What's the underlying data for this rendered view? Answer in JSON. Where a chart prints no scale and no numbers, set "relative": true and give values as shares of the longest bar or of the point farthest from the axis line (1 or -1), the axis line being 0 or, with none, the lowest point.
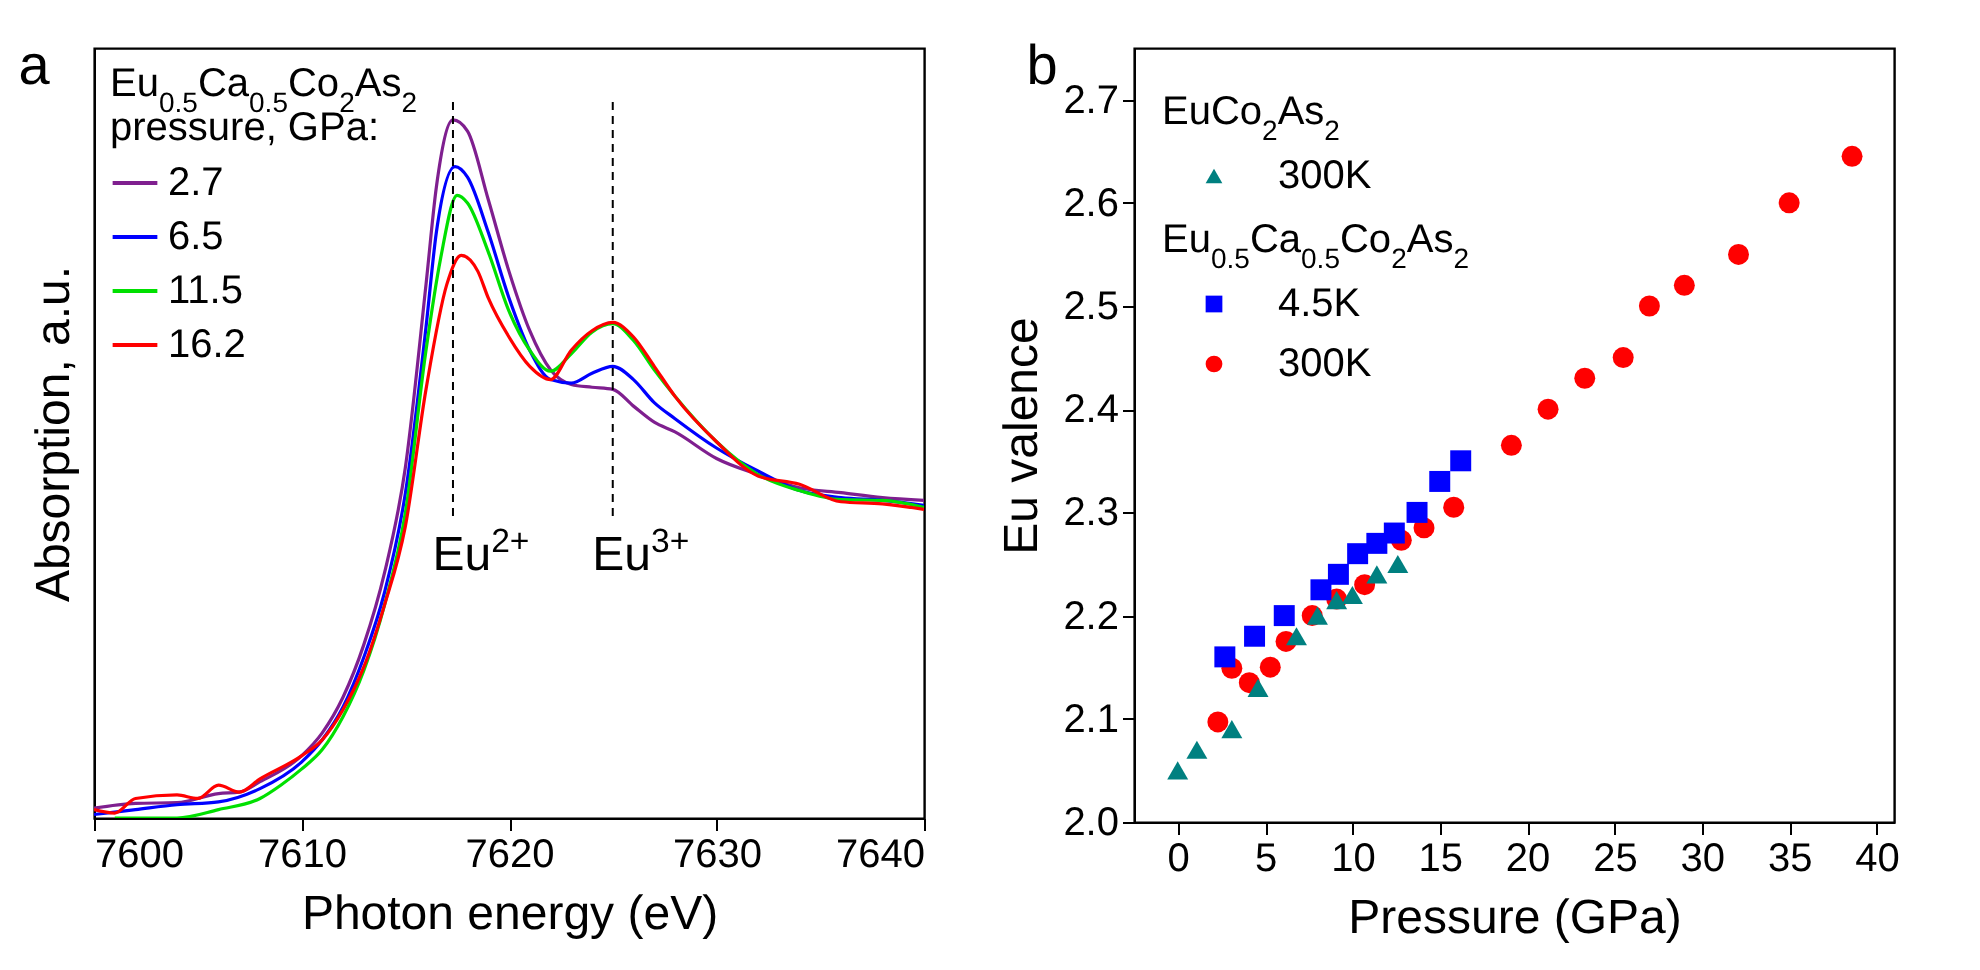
{
  "chart_data": [
    {
      "type": "line",
      "title": "a",
      "xlabel": "Photon energy (eV)",
      "ylabel": "Absorption, a.u.",
      "legend_title": "Eu$_{0.5}$Ca$_{0.5}$Co$_{2}$As$_{2}$\npressure, GPa:",
      "legend": "top left",
      "relative": true,
      "xlim": [
        7600,
        7640
      ],
      "xticks": [
        7600,
        7610,
        7620,
        7630,
        7640
      ],
      "ref_lines": [
        {
          "axis": "x",
          "value": 7617.3,
          "label": "Eu$^{2+}$",
          "line_style": "dashed"
        },
        {
          "axis": "x",
          "value": 7625,
          "label": "Eu$^{3+}$",
          "line_style": "dashed"
        }
      ],
      "series": [
        {
          "name": "2.7",
          "color": "#7f1f8f",
          "x": [
            7600,
            7602,
            7604,
            7606,
            7607,
            7608,
            7610,
            7611,
            7612,
            7613,
            7614,
            7615,
            7616,
            7616.5,
            7617.3,
            7618,
            7619,
            7620,
            7621,
            7622,
            7623,
            7624,
            7625,
            7626,
            7627,
            7628,
            7630,
            7632,
            7634,
            7636,
            7638,
            7640
          ],
          "values": [
            0.014,
            0.021,
            0.022,
            0.035,
            0.037,
            0.052,
            0.089,
            0.122,
            0.173,
            0.248,
            0.351,
            0.501,
            0.764,
            0.904,
            1,
            0.984,
            0.886,
            0.783,
            0.698,
            0.642,
            0.621,
            0.617,
            0.614,
            0.59,
            0.567,
            0.553,
            0.515,
            0.492,
            0.473,
            0.466,
            0.459,
            0.455
          ]
        },
        {
          "name": "6.5",
          "color": "#0000ff",
          "x": [
            7600,
            7602,
            7604,
            7606,
            7608,
            7610,
            7611,
            7612,
            7613,
            7614,
            7615,
            7616,
            7616.5,
            7617.4,
            7618,
            7619,
            7620,
            7621,
            7622,
            7623,
            7624,
            7625,
            7626,
            7627,
            7628,
            7630,
            7632,
            7634,
            7636,
            7638,
            7640
          ],
          "values": [
            0.005,
            0.012,
            0.019,
            0.023,
            0.042,
            0.08,
            0.112,
            0.159,
            0.23,
            0.323,
            0.464,
            0.703,
            0.839,
            0.933,
            0.918,
            0.839,
            0.745,
            0.67,
            0.628,
            0.623,
            0.637,
            0.647,
            0.628,
            0.595,
            0.572,
            0.53,
            0.497,
            0.469,
            0.459,
            0.455,
            0.448
          ]
        },
        {
          "name": "11.5",
          "color": "#00e000",
          "x": [
            7601,
            7602,
            7604,
            7606,
            7608,
            7609,
            7610,
            7611,
            7612,
            7613,
            7614,
            7615,
            7616,
            7616.7,
            7617.5,
            7618,
            7619,
            7620,
            7621,
            7622,
            7623,
            7624,
            7625,
            7626,
            7627,
            7628,
            7630,
            7632,
            7634,
            7636,
            7638,
            7640
          ],
          "values": [
            0,
            0,
            0,
            0.012,
            0.028,
            0.047,
            0.07,
            0.098,
            0.145,
            0.211,
            0.305,
            0.436,
            0.67,
            0.801,
            0.892,
            0.881,
            0.811,
            0.726,
            0.67,
            0.64,
            0.665,
            0.696,
            0.708,
            0.684,
            0.642,
            0.604,
            0.539,
            0.492,
            0.469,
            0.456,
            0.455,
            0.445
          ]
        },
        {
          "name": "16.2",
          "color": "#ff0000",
          "x": [
            7600,
            7601,
            7602,
            7604,
            7605,
            7606,
            7607,
            7608,
            7610,
            7611,
            7612,
            7613,
            7614,
            7615,
            7616,
            7617,
            7617.7,
            7618.5,
            7619,
            7620,
            7621,
            7622,
            7623,
            7624,
            7625,
            7626,
            7627,
            7628,
            7630,
            7632,
            7634,
            7636,
            7638,
            7640
          ],
          "values": [
            0.012,
            0.007,
            0.028,
            0.033,
            0.028,
            0.047,
            0.037,
            0.056,
            0.089,
            0.112,
            0.155,
            0.216,
            0.305,
            0.417,
            0.614,
            0.764,
            0.806,
            0.783,
            0.745,
            0.689,
            0.647,
            0.628,
            0.67,
            0.698,
            0.71,
            0.689,
            0.647,
            0.604,
            0.539,
            0.49,
            0.478,
            0.453,
            0.45,
            0.442
          ]
        }
      ]
    },
    {
      "type": "scatter",
      "title": "b",
      "xlabel": "Pressure (GPa)",
      "ylabel": "Eu valence",
      "legend": "top left",
      "xlim": [
        -2.5,
        41
      ],
      "xticks": [
        0,
        5,
        10,
        15,
        20,
        25,
        30,
        35,
        40
      ],
      "ylim": [
        2.0,
        2.75
      ],
      "yticks": [
        {
          "value": 2.0,
          "label": "2.0"
        },
        2.1,
        2.2,
        2.3,
        2.4,
        2.5,
        2.6,
        2.7
      ],
      "annotations": [
        "EuCo$_{2}$As$_{2}$",
        "Eu$_{0.5}$Ca$_{0.5}$Co$_{2}$As$_{2}$"
      ],
      "series": [
        {
          "name": "300K",
          "color": "#008080",
          "marker": "triangle",
          "x": [
            0,
            1.1,
            3.1,
            4.6,
            6.8,
            8.0,
            9.1,
            10.0,
            11.4,
            12.6
          ],
          "values": [
            2.05,
            2.07,
            2.09,
            2.13,
            2.18,
            2.2,
            2.215,
            2.22,
            2.24,
            2.25
          ]
        },
        {
          "name": "4.5K",
          "color": "#0000ff",
          "marker": "square",
          "x": [
            2.7,
            4.4,
            6.1,
            8.2,
            9.2,
            10.3,
            11.4,
            12.4,
            13.7,
            15.0,
            16.2
          ],
          "values": [
            2.16,
            2.18,
            2.2,
            2.225,
            2.24,
            2.26,
            2.27,
            2.28,
            2.3,
            2.33,
            2.35
          ]
        },
        {
          "name": "300K",
          "color": "#ff0000",
          "marker": "circle",
          "x": [
            2.3,
            3.1,
            4.1,
            5.3,
            6.2,
            7.7,
            9.1,
            10.7,
            12.8,
            14.1,
            15.8,
            19.1,
            21.2,
            23.3,
            25.5,
            27.0,
            29.0,
            32.1,
            35.0,
            38.6
          ],
          "values": [
            2.097,
            2.149,
            2.135,
            2.15,
            2.175,
            2.2,
            2.216,
            2.23,
            2.273,
            2.285,
            2.305,
            2.365,
            2.4,
            2.43,
            2.45,
            2.5,
            2.52,
            2.55,
            2.6,
            2.645
          ]
        }
      ]
    }
  ]
}
